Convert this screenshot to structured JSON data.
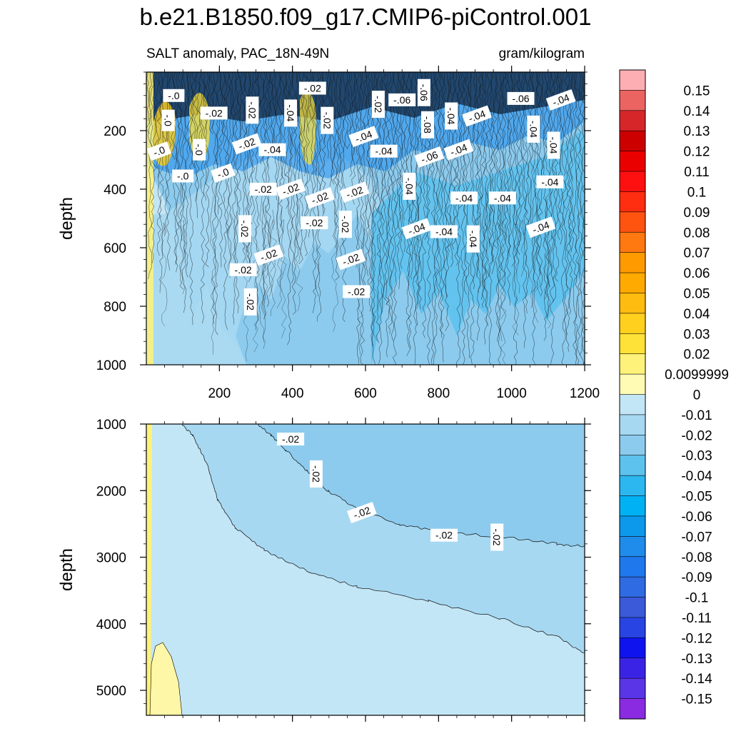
{
  "chart_data": {
    "type": "contour",
    "title": "b.e21.B1850.f09_g17.CMIP6-piControl.001",
    "left_subtitle": "SALT anomaly, PAC_18N-49N",
    "right_subtitle": "gram/kilogram",
    "x_ticks": [
      200,
      400,
      600,
      800,
      1000,
      1200
    ],
    "xlim": [
      0,
      1200
    ],
    "panels": [
      {
        "name": "upper",
        "ylabel": "depth",
        "ylim": [
          0,
          1000
        ],
        "y_ticks": [
          200,
          400,
          600,
          800,
          1000
        ],
        "contour_labels": [
          {
            "x": 75,
            "y": 80,
            "t": "-.0"
          },
          {
            "x": 60,
            "y": 165,
            "t": "-.0"
          },
          {
            "x": 35,
            "y": 270,
            "t": "-.0"
          },
          {
            "x": 100,
            "y": 355,
            "t": "-.0"
          },
          {
            "x": 145,
            "y": 265,
            "t": "-.0"
          },
          {
            "x": 210,
            "y": 345,
            "t": "-.0"
          },
          {
            "x": 185,
            "y": 140,
            "t": "-.02"
          },
          {
            "x": 290,
            "y": 130,
            "t": "-.02"
          },
          {
            "x": 275,
            "y": 245,
            "t": "-.02"
          },
          {
            "x": 320,
            "y": 400,
            "t": "-.02"
          },
          {
            "x": 270,
            "y": 535,
            "t": "-.02"
          },
          {
            "x": 335,
            "y": 625,
            "t": "-.02"
          },
          {
            "x": 265,
            "y": 675,
            "t": "-.02"
          },
          {
            "x": 285,
            "y": 785,
            "t": "-.02"
          },
          {
            "x": 395,
            "y": 400,
            "t": "-.02"
          },
          {
            "x": 455,
            "y": 55,
            "t": "-.02"
          },
          {
            "x": 495,
            "y": 165,
            "t": "-.02"
          },
          {
            "x": 475,
            "y": 430,
            "t": "-.02"
          },
          {
            "x": 460,
            "y": 515,
            "t": "-.02"
          },
          {
            "x": 545,
            "y": 520,
            "t": "-.02"
          },
          {
            "x": 560,
            "y": 640,
            "t": "-.02"
          },
          {
            "x": 575,
            "y": 750,
            "t": "-.02"
          },
          {
            "x": 635,
            "y": 110,
            "t": "-.02"
          },
          {
            "x": 570,
            "y": 410,
            "t": "-.02"
          },
          {
            "x": 345,
            "y": 265,
            "t": "-.04"
          },
          {
            "x": 395,
            "y": 140,
            "t": "-.04"
          },
          {
            "x": 595,
            "y": 220,
            "t": "-.04"
          },
          {
            "x": 650,
            "y": 270,
            "t": "-.04"
          },
          {
            "x": 720,
            "y": 390,
            "t": "-.04"
          },
          {
            "x": 740,
            "y": 535,
            "t": "-.04"
          },
          {
            "x": 815,
            "y": 545,
            "t": "-.04"
          },
          {
            "x": 835,
            "y": 150,
            "t": "-.04"
          },
          {
            "x": 855,
            "y": 265,
            "t": "-.04"
          },
          {
            "x": 870,
            "y": 430,
            "t": "-.04"
          },
          {
            "x": 895,
            "y": 570,
            "t": "-.04"
          },
          {
            "x": 905,
            "y": 150,
            "t": "-.04"
          },
          {
            "x": 975,
            "y": 430,
            "t": "-.04"
          },
          {
            "x": 1060,
            "y": 195,
            "t": "-.04"
          },
          {
            "x": 1080,
            "y": 530,
            "t": "-.04"
          },
          {
            "x": 1105,
            "y": 375,
            "t": "-.04"
          },
          {
            "x": 1115,
            "y": 250,
            "t": "-.04"
          },
          {
            "x": 1135,
            "y": 95,
            "t": "-.04"
          },
          {
            "x": 700,
            "y": 95,
            "t": "-.06"
          },
          {
            "x": 760,
            "y": 70,
            "t": "-.06"
          },
          {
            "x": 775,
            "y": 290,
            "t": "-.06"
          },
          {
            "x": 1025,
            "y": 90,
            "t": "-.06"
          },
          {
            "x": 770,
            "y": 180,
            "t": "-.08"
          }
        ]
      },
      {
        "name": "lower",
        "ylabel": "depth",
        "ylim": [
          1000,
          5375
        ],
        "y_ticks": [
          1000,
          2000,
          3000,
          4000,
          5000
        ],
        "contour_labels": [
          {
            "x": 395,
            "y": 1225,
            "t": "-.02"
          },
          {
            "x": 465,
            "y": 1750,
            "t": "-.02"
          },
          {
            "x": 590,
            "y": 2330,
            "t": "-.02"
          },
          {
            "x": 815,
            "y": 2670,
            "t": "-.02"
          },
          {
            "x": 960,
            "y": 2700,
            "t": "-.02"
          }
        ]
      }
    ],
    "colorbar": {
      "labels": [
        "0.15",
        "0.14",
        "0.13",
        "0.12",
        "0.11",
        "0.1",
        "0.09",
        "0.08",
        "0.07",
        "0.06",
        "0.05",
        "0.04",
        "0.03",
        "0.02",
        "0.0099999",
        "0",
        "-0.01",
        "-0.02",
        "-0.03",
        "-0.04",
        "-0.05",
        "-0.06",
        "-0.07",
        "-0.08",
        "-0.09",
        "-0.1",
        "-0.11",
        "-0.12",
        "-0.13",
        "-0.14",
        "-0.15"
      ],
      "colors": [
        "#fdaeb3",
        "#ec6461",
        "#d6262a",
        "#cd0000",
        "#eb0000",
        "#ff1010",
        "#ff2e10",
        "#ff5310",
        "#ff7810",
        "#ff9a00",
        "#ffaa00",
        "#ffbc10",
        "#ffd01e",
        "#ffe237",
        "#fff27a",
        "#fffbb4",
        "#c3e6f6",
        "#a6d8f2",
        "#8ccbee",
        "#5ec2ee",
        "#2cb7f0",
        "#00b2f4",
        "#0c99ec",
        "#1f8cec",
        "#1f78ec",
        "#2f6be2",
        "#3b5ad9",
        "#2844e3",
        "#0f14ee",
        "#3b23e6",
        "#5a35e8",
        "#8a2be2"
      ]
    }
  }
}
